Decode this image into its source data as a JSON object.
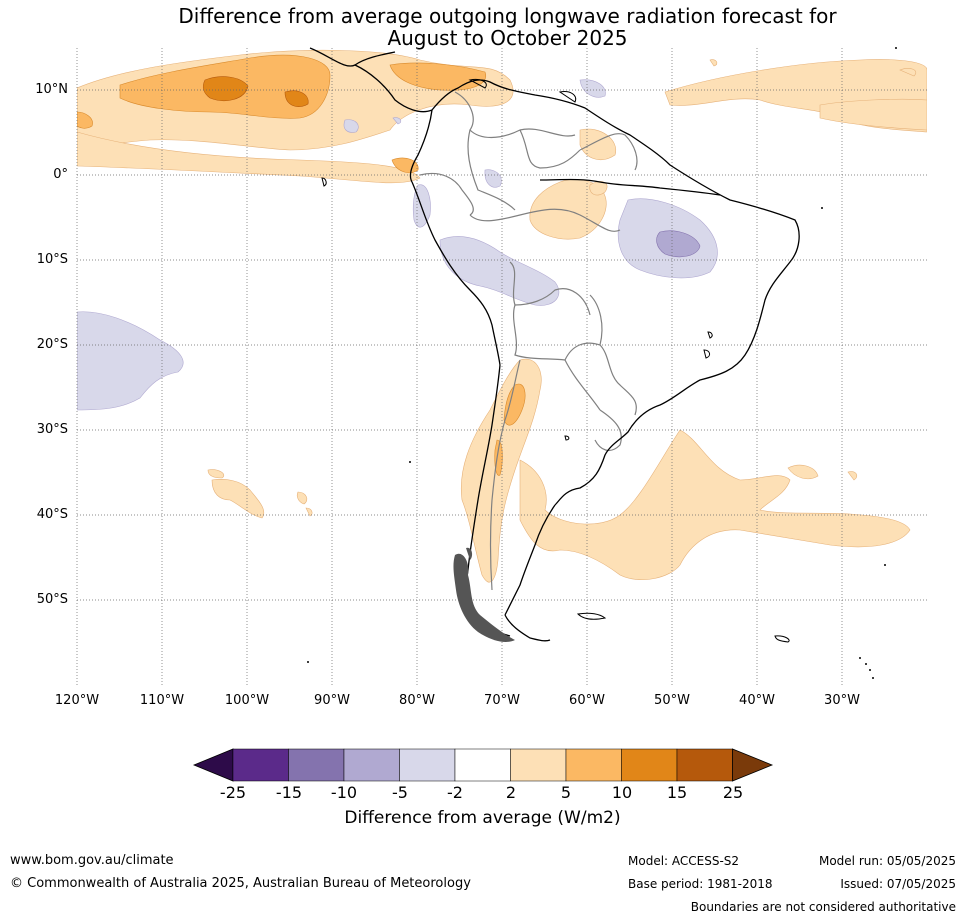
{
  "title_line1": "Difference from average outgoing longwave radiation forecast for",
  "title_line2": "August to October 2025",
  "map": {
    "lat_labels": [
      "10°N",
      "0°",
      "10°S",
      "20°S",
      "30°S",
      "40°S",
      "50°S"
    ],
    "lon_labels": [
      "120°W",
      "110°W",
      "100°W",
      "90°W",
      "80°W",
      "70°W",
      "60°W",
      "50°W",
      "40°W",
      "30°W"
    ],
    "extent": {
      "lon": [
        -120,
        -20
      ],
      "lat": [
        -60,
        15
      ]
    }
  },
  "colorbar": {
    "ticks": [
      "-25",
      "-15",
      "-10",
      "-5",
      "-2",
      "2",
      "5",
      "10",
      "15",
      "25"
    ],
    "colors": [
      "#2d0b49",
      "#5b2a8a",
      "#8473ae",
      "#b0a9d1",
      "#d8d8ea",
      "#ffffff",
      "#fde0b6",
      "#fbb863",
      "#e18618",
      "#b5590c",
      "#7a3a0a"
    ],
    "label": "Difference from average (W/m2)"
  },
  "footer": {
    "website": "www.bom.gov.au/climate",
    "copyright": "© Commonwealth of Australia 2025, Australian Bureau of Meteorology",
    "model": "Model: ACCESS-S2",
    "base_period": "Base period: 1981-2018",
    "model_run": "Model run: 05/05/2025",
    "issued": "Issued: 07/05/2025",
    "disclaimer": "Boundaries are not considered authoritative"
  }
}
